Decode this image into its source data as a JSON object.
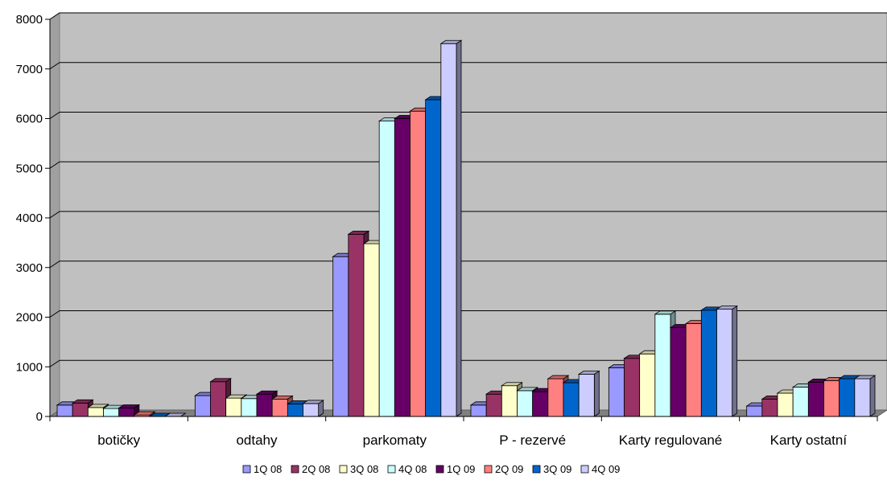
{
  "chart_data": {
    "type": "bar",
    "style": "3d-clustered-column",
    "title": "",
    "xlabel": "",
    "ylabel": "",
    "ylim": [
      0,
      8000
    ],
    "yticks": [
      "0",
      "1000",
      "2000",
      "3000",
      "4000",
      "5000",
      "6000",
      "7000",
      "8000"
    ],
    "grid": true,
    "legend_position": "bottom",
    "categories": [
      "botičky",
      "odtahy",
      "parkomaty",
      "P - rezervé",
      "Karty regulované",
      "Karty ostatní"
    ],
    "series": [
      {
        "name": "1Q 08",
        "color": "#9999ff",
        "values": [
          230,
          420,
          3220,
          230,
          980,
          210
        ]
      },
      {
        "name": "2Q 08",
        "color": "#993366",
        "values": [
          270,
          700,
          3670,
          450,
          1170,
          350
        ]
      },
      {
        "name": "3Q 08",
        "color": "#ffffcc",
        "values": [
          180,
          370,
          3480,
          620,
          1260,
          470
        ]
      },
      {
        "name": "4Q 08",
        "color": "#ccffff",
        "values": [
          160,
          360,
          5950,
          520,
          2060,
          590
        ]
      },
      {
        "name": "1Q 09",
        "color": "#660066",
        "values": [
          170,
          450,
          6000,
          500,
          1790,
          690
        ]
      },
      {
        "name": "2Q 09",
        "color": "#ff8080",
        "values": [
          30,
          350,
          6150,
          760,
          1870,
          720
        ]
      },
      {
        "name": "3Q 09",
        "color": "#0066cc",
        "values": [
          0,
          250,
          6380,
          680,
          2140,
          760
        ]
      },
      {
        "name": "4Q 09",
        "color": "#ccccff",
        "values": [
          0,
          260,
          7510,
          850,
          2160,
          760
        ]
      }
    ],
    "colors": {
      "plot_wall": "#c0c0c0",
      "floor": "#808080",
      "gridline": "#000000"
    }
  }
}
